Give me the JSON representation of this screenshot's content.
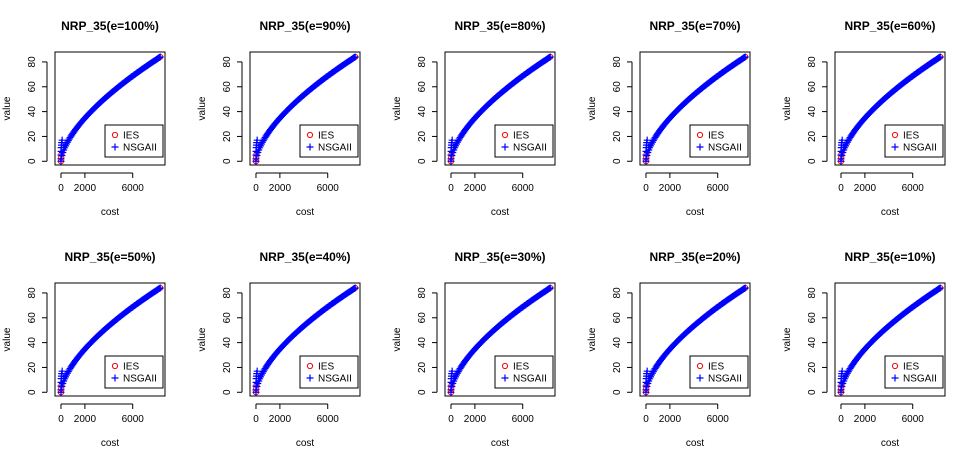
{
  "figure": {
    "background": "#ffffff",
    "layout": {
      "rows": 2,
      "cols": 5
    }
  },
  "chart_data": [
    {
      "type": "scatter",
      "title": "NRP_35(e=100%)",
      "xlabel": "cost",
      "ylabel": "value",
      "xticks": [
        0,
        2000,
        6000
      ],
      "yticks": [
        0,
        20,
        40,
        60,
        80
      ],
      "xlim": [
        -500,
        8700
      ],
      "ylim": [
        -3,
        88
      ],
      "grid": false,
      "legend": {
        "position": "bottom-right",
        "entries": [
          {
            "label": "IES",
            "marker": "circle",
            "color": "#ff0000"
          },
          {
            "label": "NSGAII",
            "marker": "plus",
            "color": "#0000ff"
          }
        ]
      },
      "series": [
        {
          "name": "IES",
          "marker": "circle",
          "color": "#ff0000",
          "points": [
            [
              0,
              0
            ],
            [
              20,
              3
            ],
            [
              50,
              6
            ],
            [
              8300,
              84
            ]
          ]
        },
        {
          "name": "NSGAII",
          "marker": "plus",
          "color": "#0000ff",
          "front": {
            "x_range": [
              0,
              8300
            ],
            "y_range": [
              0,
              84
            ],
            "curve": "concave",
            "n": 110
          }
        }
      ]
    },
    {
      "type": "scatter",
      "title": "NRP_35(e=90%)",
      "xlabel": "cost",
      "ylabel": "value",
      "xticks": [
        0,
        2000,
        6000
      ],
      "yticks": [
        0,
        20,
        40,
        60,
        80
      ],
      "xlim": [
        -500,
        8700
      ],
      "ylim": [
        -3,
        88
      ],
      "grid": false,
      "legend": {
        "position": "bottom-right",
        "entries": [
          {
            "label": "IES",
            "marker": "circle",
            "color": "#ff0000"
          },
          {
            "label": "NSGAII",
            "marker": "plus",
            "color": "#0000ff"
          }
        ]
      },
      "series": [
        {
          "name": "IES",
          "marker": "circle",
          "color": "#ff0000",
          "points": [
            [
              0,
              0
            ],
            [
              20,
              3
            ],
            [
              50,
              6
            ],
            [
              8300,
              84
            ]
          ]
        },
        {
          "name": "NSGAII",
          "marker": "plus",
          "color": "#0000ff",
          "front": {
            "x_range": [
              0,
              8300
            ],
            "y_range": [
              0,
              84
            ],
            "curve": "concave",
            "n": 110
          }
        }
      ]
    },
    {
      "type": "scatter",
      "title": "NRP_35(e=80%)",
      "xlabel": "cost",
      "ylabel": "value",
      "xticks": [
        0,
        2000,
        6000
      ],
      "yticks": [
        0,
        20,
        40,
        60,
        80
      ],
      "xlim": [
        -500,
        8700
      ],
      "ylim": [
        -3,
        88
      ],
      "grid": false,
      "legend": {
        "position": "bottom-right",
        "entries": [
          {
            "label": "IES",
            "marker": "circle",
            "color": "#ff0000"
          },
          {
            "label": "NSGAII",
            "marker": "plus",
            "color": "#0000ff"
          }
        ]
      },
      "series": [
        {
          "name": "IES",
          "marker": "circle",
          "color": "#ff0000",
          "points": [
            [
              0,
              0
            ],
            [
              20,
              3
            ],
            [
              50,
              6
            ],
            [
              8300,
              84
            ]
          ]
        },
        {
          "name": "NSGAII",
          "marker": "plus",
          "color": "#0000ff",
          "front": {
            "x_range": [
              0,
              8300
            ],
            "y_range": [
              0,
              84
            ],
            "curve": "concave",
            "n": 110
          }
        }
      ]
    },
    {
      "type": "scatter",
      "title": "NRP_35(e=70%)",
      "xlabel": "cost",
      "ylabel": "value",
      "xticks": [
        0,
        2000,
        6000
      ],
      "yticks": [
        0,
        20,
        40,
        60,
        80
      ],
      "xlim": [
        -500,
        8700
      ],
      "ylim": [
        -3,
        88
      ],
      "grid": false,
      "legend": {
        "position": "bottom-right",
        "entries": [
          {
            "label": "IES",
            "marker": "circle",
            "color": "#ff0000"
          },
          {
            "label": "NSGAII",
            "marker": "plus",
            "color": "#0000ff"
          }
        ]
      },
      "series": [
        {
          "name": "IES",
          "marker": "circle",
          "color": "#ff0000",
          "points": [
            [
              0,
              0
            ],
            [
              20,
              3
            ],
            [
              50,
              6
            ],
            [
              8300,
              84
            ]
          ]
        },
        {
          "name": "NSGAII",
          "marker": "plus",
          "color": "#0000ff",
          "front": {
            "x_range": [
              0,
              8300
            ],
            "y_range": [
              0,
              84
            ],
            "curve": "concave",
            "n": 110
          }
        }
      ]
    },
    {
      "type": "scatter",
      "title": "NRP_35(e=60%)",
      "xlabel": "cost",
      "ylabel": "value",
      "xticks": [
        0,
        2000,
        6000
      ],
      "yticks": [
        0,
        20,
        40,
        60,
        80
      ],
      "xlim": [
        -500,
        8700
      ],
      "ylim": [
        -3,
        88
      ],
      "grid": false,
      "legend": {
        "position": "bottom-right",
        "entries": [
          {
            "label": "IES",
            "marker": "circle",
            "color": "#ff0000"
          },
          {
            "label": "NSGAII",
            "marker": "plus",
            "color": "#0000ff"
          }
        ]
      },
      "series": [
        {
          "name": "IES",
          "marker": "circle",
          "color": "#ff0000",
          "points": [
            [
              0,
              0
            ],
            [
              20,
              3
            ],
            [
              50,
              6
            ],
            [
              8300,
              84
            ]
          ]
        },
        {
          "name": "NSGAII",
          "marker": "plus",
          "color": "#0000ff",
          "front": {
            "x_range": [
              0,
              8300
            ],
            "y_range": [
              0,
              84
            ],
            "curve": "concave",
            "n": 110
          }
        }
      ]
    },
    {
      "type": "scatter",
      "title": "NRP_35(e=50%)",
      "xlabel": "cost",
      "ylabel": "value",
      "xticks": [
        0,
        2000,
        6000
      ],
      "yticks": [
        0,
        20,
        40,
        60,
        80
      ],
      "xlim": [
        -500,
        8700
      ],
      "ylim": [
        -3,
        88
      ],
      "grid": false,
      "legend": {
        "position": "bottom-right",
        "entries": [
          {
            "label": "IES",
            "marker": "circle",
            "color": "#ff0000"
          },
          {
            "label": "NSGAII",
            "marker": "plus",
            "color": "#0000ff"
          }
        ]
      },
      "series": [
        {
          "name": "IES",
          "marker": "circle",
          "color": "#ff0000",
          "points": [
            [
              0,
              0
            ],
            [
              20,
              3
            ],
            [
              50,
              6
            ],
            [
              8300,
              84
            ]
          ]
        },
        {
          "name": "NSGAII",
          "marker": "plus",
          "color": "#0000ff",
          "front": {
            "x_range": [
              0,
              8300
            ],
            "y_range": [
              0,
              84
            ],
            "curve": "concave",
            "n": 110
          }
        }
      ]
    },
    {
      "type": "scatter",
      "title": "NRP_35(e=40%)",
      "xlabel": "cost",
      "ylabel": "value",
      "xticks": [
        0,
        2000,
        6000
      ],
      "yticks": [
        0,
        20,
        40,
        60,
        80
      ],
      "xlim": [
        -500,
        8700
      ],
      "ylim": [
        -3,
        88
      ],
      "grid": false,
      "legend": {
        "position": "bottom-right",
        "entries": [
          {
            "label": "IES",
            "marker": "circle",
            "color": "#ff0000"
          },
          {
            "label": "NSGAII",
            "marker": "plus",
            "color": "#0000ff"
          }
        ]
      },
      "series": [
        {
          "name": "IES",
          "marker": "circle",
          "color": "#ff0000",
          "points": [
            [
              0,
              0
            ],
            [
              20,
              3
            ],
            [
              50,
              6
            ],
            [
              8300,
              84
            ]
          ]
        },
        {
          "name": "NSGAII",
          "marker": "plus",
          "color": "#0000ff",
          "front": {
            "x_range": [
              0,
              8300
            ],
            "y_range": [
              0,
              84
            ],
            "curve": "concave",
            "n": 110
          }
        }
      ]
    },
    {
      "type": "scatter",
      "title": "NRP_35(e=30%)",
      "xlabel": "cost",
      "ylabel": "value",
      "xticks": [
        0,
        2000,
        6000
      ],
      "yticks": [
        0,
        20,
        40,
        60,
        80
      ],
      "xlim": [
        -500,
        8700
      ],
      "ylim": [
        -3,
        88
      ],
      "grid": false,
      "legend": {
        "position": "bottom-right",
        "entries": [
          {
            "label": "IES",
            "marker": "circle",
            "color": "#ff0000"
          },
          {
            "label": "NSGAII",
            "marker": "plus",
            "color": "#0000ff"
          }
        ]
      },
      "series": [
        {
          "name": "IES",
          "marker": "circle",
          "color": "#ff0000",
          "points": [
            [
              0,
              0
            ],
            [
              20,
              3
            ],
            [
              50,
              6
            ],
            [
              8300,
              84
            ]
          ]
        },
        {
          "name": "NSGAII",
          "marker": "plus",
          "color": "#0000ff",
          "front": {
            "x_range": [
              0,
              8300
            ],
            "y_range": [
              0,
              84
            ],
            "curve": "concave",
            "n": 110
          }
        }
      ]
    },
    {
      "type": "scatter",
      "title": "NRP_35(e=20%)",
      "xlabel": "cost",
      "ylabel": "value",
      "xticks": [
        0,
        2000,
        6000
      ],
      "yticks": [
        0,
        20,
        40,
        60,
        80
      ],
      "xlim": [
        -500,
        8700
      ],
      "ylim": [
        -3,
        88
      ],
      "grid": false,
      "legend": {
        "position": "bottom-right",
        "entries": [
          {
            "label": "IES",
            "marker": "circle",
            "color": "#ff0000"
          },
          {
            "label": "NSGAII",
            "marker": "plus",
            "color": "#0000ff"
          }
        ]
      },
      "series": [
        {
          "name": "IES",
          "marker": "circle",
          "color": "#ff0000",
          "points": [
            [
              0,
              0
            ],
            [
              20,
              3
            ],
            [
              50,
              6
            ],
            [
              8300,
              84
            ]
          ]
        },
        {
          "name": "NSGAII",
          "marker": "plus",
          "color": "#0000ff",
          "front": {
            "x_range": [
              0,
              8300
            ],
            "y_range": [
              0,
              84
            ],
            "curve": "concave",
            "n": 110
          }
        }
      ]
    },
    {
      "type": "scatter",
      "title": "NRP_35(e=10%)",
      "xlabel": "cost",
      "ylabel": "value",
      "xticks": [
        0,
        2000,
        6000
      ],
      "yticks": [
        0,
        20,
        40,
        60,
        80
      ],
      "xlim": [
        -500,
        8700
      ],
      "ylim": [
        -3,
        88
      ],
      "grid": false,
      "legend": {
        "position": "bottom-right",
        "entries": [
          {
            "label": "IES",
            "marker": "circle",
            "color": "#ff0000"
          },
          {
            "label": "NSGAII",
            "marker": "plus",
            "color": "#0000ff"
          }
        ]
      },
      "series": [
        {
          "name": "IES",
          "marker": "circle",
          "color": "#ff0000",
          "points": [
            [
              0,
              0
            ],
            [
              20,
              3
            ],
            [
              50,
              6
            ],
            [
              8300,
              84
            ]
          ]
        },
        {
          "name": "NSGAII",
          "marker": "plus",
          "color": "#0000ff",
          "front": {
            "x_range": [
              0,
              8300
            ],
            "y_range": [
              0,
              84
            ],
            "curve": "concave",
            "n": 110
          }
        }
      ]
    }
  ]
}
